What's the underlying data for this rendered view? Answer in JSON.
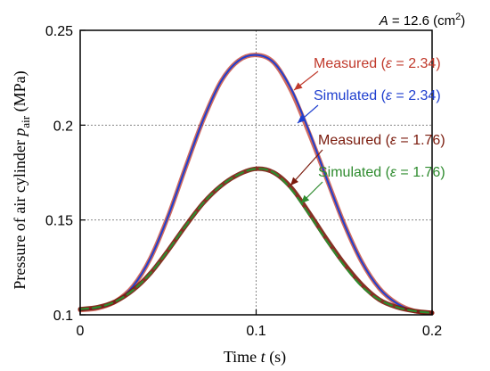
{
  "chart_data": {
    "type": "line",
    "xlabel_main": "Time ",
    "xlabel_var": "t",
    "xlabel_unit": " (s)",
    "ylabel_main": "Pressure of air cylinder ",
    "ylabel_var": "p",
    "ylabel_sub": "air",
    "ylabel_unit": " (MPa)",
    "annotation_var": "A",
    "annotation_value": " = 12.6 (cm",
    "annotation_sup": "2",
    "annotation_close": ")",
    "xlim": [
      0,
      0.2
    ],
    "ylim": [
      0.1,
      0.25
    ],
    "x_ticks": [
      0,
      0.1,
      0.2
    ],
    "x_tick_labels": [
      "0",
      "0.1",
      "0.2"
    ],
    "y_ticks": [
      0.1,
      0.15,
      0.2,
      0.25
    ],
    "y_tick_labels": [
      "0.1",
      "0.15",
      "0.2",
      "0.25"
    ],
    "grid": true,
    "series": [
      {
        "label_main": "Measured (",
        "label_var": "ε",
        "label_val": " = 2.34)",
        "color": "#c0392b",
        "style": "solid",
        "x": [
          0,
          0.01,
          0.02,
          0.03,
          0.04,
          0.05,
          0.06,
          0.07,
          0.08,
          0.09,
          0.1,
          0.11,
          0.12,
          0.13,
          0.14,
          0.15,
          0.16,
          0.17,
          0.18,
          0.19,
          0.2
        ],
        "values": [
          0.1025,
          0.1035,
          0.107,
          0.115,
          0.13,
          0.152,
          0.178,
          0.203,
          0.223,
          0.234,
          0.237,
          0.233,
          0.218,
          0.196,
          0.172,
          0.148,
          0.128,
          0.114,
          0.106,
          0.102,
          0.101
        ]
      },
      {
        "label_main": "Simulated (",
        "label_var": "ε",
        "label_val": " = 2.34)",
        "color": "#1f3fcf",
        "style": "solid",
        "x": [
          0,
          0.01,
          0.02,
          0.03,
          0.04,
          0.05,
          0.06,
          0.07,
          0.08,
          0.09,
          0.1,
          0.11,
          0.12,
          0.13,
          0.14,
          0.15,
          0.16,
          0.17,
          0.18,
          0.19,
          0.2
        ],
        "values": [
          0.1025,
          0.1035,
          0.107,
          0.115,
          0.13,
          0.152,
          0.178,
          0.203,
          0.223,
          0.234,
          0.237,
          0.233,
          0.219,
          0.197,
          0.172,
          0.148,
          0.128,
          0.114,
          0.106,
          0.102,
          0.101
        ]
      },
      {
        "label_main": "Measured (",
        "label_var": "ε",
        "label_val": " = 1.76)",
        "color": "#7a1a0c",
        "style": "solid",
        "x": [
          0,
          0.01,
          0.02,
          0.03,
          0.04,
          0.05,
          0.06,
          0.07,
          0.08,
          0.09,
          0.1,
          0.11,
          0.12,
          0.13,
          0.14,
          0.15,
          0.16,
          0.17,
          0.18,
          0.19,
          0.2
        ],
        "values": [
          0.103,
          0.104,
          0.107,
          0.113,
          0.122,
          0.134,
          0.147,
          0.159,
          0.168,
          0.174,
          0.177,
          0.175,
          0.167,
          0.154,
          0.14,
          0.127,
          0.116,
          0.108,
          0.104,
          0.102,
          0.101
        ]
      },
      {
        "label_main": "Simulated (",
        "label_var": "ε",
        "label_val": " = 1.76)",
        "color": "#2e8b2e",
        "style": "dashed",
        "x": [
          0,
          0.01,
          0.02,
          0.03,
          0.04,
          0.05,
          0.06,
          0.07,
          0.08,
          0.09,
          0.1,
          0.11,
          0.12,
          0.13,
          0.14,
          0.15,
          0.16,
          0.17,
          0.18,
          0.19,
          0.2
        ],
        "values": [
          0.103,
          0.104,
          0.107,
          0.113,
          0.122,
          0.134,
          0.147,
          0.159,
          0.168,
          0.174,
          0.177,
          0.175,
          0.166,
          0.153,
          0.139,
          0.126,
          0.115,
          0.108,
          0.104,
          0.102,
          0.101
        ]
      }
    ]
  }
}
